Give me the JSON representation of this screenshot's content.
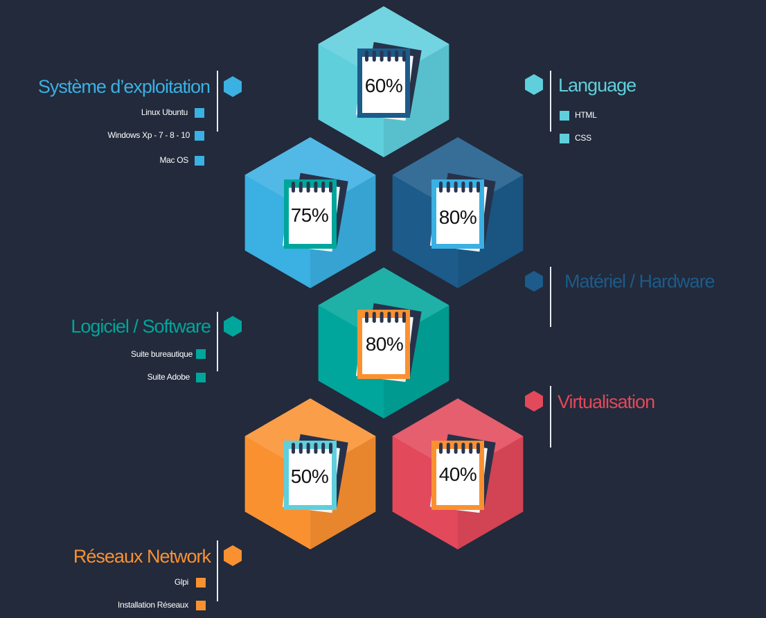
{
  "colors": {
    "background": "#222a3b",
    "sky": "#3bb0e3",
    "cyan": "#5fcfdc",
    "navy": "#1c5b8a",
    "teal": "#00a69b",
    "red": "#e2495a",
    "orange": "#fa9131",
    "divider": "#e8ebf0"
  },
  "hexagons": [
    {
      "id": "hex-top",
      "label": "60%",
      "color": "cyan",
      "frame": "navy"
    },
    {
      "id": "hex-left",
      "label": "75%",
      "color": "sky",
      "frame": "teal"
    },
    {
      "id": "hex-right",
      "label": "80%",
      "color": "navy",
      "frame": "sky"
    },
    {
      "id": "hex-middle",
      "label": "80%",
      "color": "teal",
      "frame": "orange"
    },
    {
      "id": "hex-bottom-left",
      "label": "50%",
      "color": "orange",
      "frame": "cyan"
    },
    {
      "id": "hex-bottom-right",
      "label": "40%",
      "color": "red",
      "frame": "orange"
    }
  ],
  "categories": {
    "os": {
      "title": "Système d’exploitation",
      "color": "sky",
      "items": [
        "Linux Ubuntu",
        "Windows  Xp - 7 - 8 - 10",
        "Mac OS"
      ]
    },
    "language": {
      "title": "Language",
      "color": "cyan",
      "items": [
        "HTML",
        "CSS"
      ]
    },
    "hardware": {
      "title": "Matériel / Hardware",
      "color": "navy",
      "items": []
    },
    "software": {
      "title": "Logiciel / Software",
      "color": "teal",
      "items": [
        "Suite bureautique",
        "Suite Adobe"
      ]
    },
    "virtualisation": {
      "title": "Virtualisation",
      "color": "red",
      "items": []
    },
    "network": {
      "title": "Réseaux Network",
      "color": "orange",
      "items": [
        "Glpi",
        "Installation Réseaux"
      ]
    }
  }
}
